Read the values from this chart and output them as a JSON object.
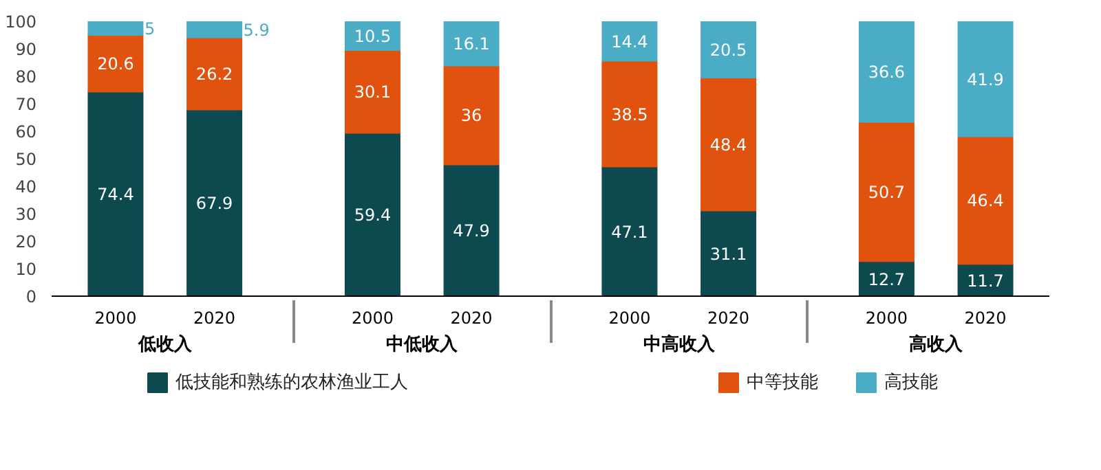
{
  "chart_data": {
    "type": "bar",
    "stacked": true,
    "categories": [
      "2000",
      "2020",
      "2000",
      "2020",
      "2000",
      "2020",
      "2000",
      "2020"
    ],
    "annotations": [
      "低收入",
      "中低收入",
      "中高收入",
      "高收入"
    ],
    "series": [
      {
        "name": "低技能和熟练的农林渔业工人",
        "color": "#0d4a50",
        "values": [
          74.4,
          67.9,
          59.4,
          47.9,
          47.1,
          31.1,
          12.7,
          11.7
        ]
      },
      {
        "name": "中等技能",
        "color": "#e0520d",
        "values": [
          20.6,
          26.2,
          30.1,
          36,
          38.5,
          48.4,
          50.7,
          46.4
        ]
      },
      {
        "name": "高技能",
        "color": "#4bacc6",
        "values": [
          5,
          5.9,
          10.5,
          16.1,
          14.4,
          20.5,
          36.6,
          41.9
        ]
      }
    ],
    "ylim": [
      0,
      100
    ],
    "yticks": [
      0,
      10,
      20,
      30,
      40,
      50,
      60,
      70,
      80,
      90,
      100
    ],
    "grid": false,
    "legend": "bottom",
    "data_labels": true
  }
}
